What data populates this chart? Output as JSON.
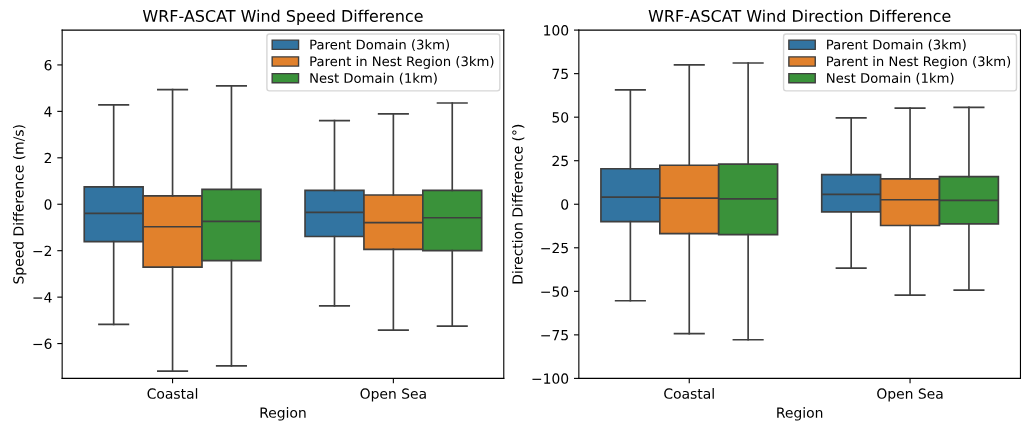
{
  "chart_data": [
    {
      "type": "box",
      "title": "WRF-ASCAT Wind Speed Difference",
      "xlabel": "Region",
      "ylabel": "Speed Difference (m/s)",
      "categories": [
        "Coastal",
        "Open Sea"
      ],
      "ylim": [
        -7.5,
        7.5
      ],
      "yticks": [
        {
          "value": -6,
          "label": "−6"
        },
        {
          "value": -4,
          "label": "−4"
        },
        {
          "value": -2,
          "label": "−2"
        },
        0,
        2,
        4,
        6
      ],
      "legend": "top right",
      "grid": false,
      "series": [
        {
          "name": "Parent Domain (3km)",
          "color": "#3274a1",
          "boxes": [
            {
              "low": -5.17,
              "q1": -1.61,
              "median": -0.39,
              "q3": 0.75,
              "high": 4.28
            },
            {
              "low": -4.38,
              "q1": -1.39,
              "median": -0.35,
              "q3": 0.6,
              "high": 3.6
            }
          ]
        },
        {
          "name": "Parent in Nest Region (3km)",
          "color": "#e1812c",
          "boxes": [
            {
              "low": -7.19,
              "q1": -2.71,
              "median": -0.97,
              "q3": 0.36,
              "high": 4.94
            },
            {
              "low": -5.42,
              "q1": -1.94,
              "median": -0.79,
              "q3": 0.4,
              "high": 3.89
            }
          ]
        },
        {
          "name": "Nest Domain (1km)",
          "color": "#3a923a",
          "boxes": [
            {
              "low": -6.96,
              "q1": -2.43,
              "median": -0.74,
              "q3": 0.64,
              "high": 5.1
            },
            {
              "low": -5.25,
              "q1": -2.0,
              "median": -0.58,
              "q3": 0.6,
              "high": 4.36
            }
          ]
        }
      ]
    },
    {
      "type": "box",
      "title": "WRF-ASCAT Wind Direction Difference",
      "xlabel": "Region",
      "ylabel": "Direction Difference (°)",
      "categories": [
        "Coastal",
        "Open Sea"
      ],
      "ylim": [
        -100,
        100
      ],
      "yticks": [
        {
          "value": -100,
          "label": "−100"
        },
        {
          "value": -75,
          "label": "−75"
        },
        {
          "value": -50,
          "label": "−50"
        },
        {
          "value": -25,
          "label": "−25"
        },
        0,
        25,
        50,
        75,
        100
      ],
      "legend": "top right",
      "grid": false,
      "series": [
        {
          "name": "Parent Domain (3km)",
          "color": "#3274a1",
          "boxes": [
            {
              "low": -55.4,
              "q1": -10,
              "median": 4.1,
              "q3": 20.4,
              "high": 65.7
            },
            {
              "low": -36.7,
              "q1": -4.4,
              "median": 5.7,
              "q3": 17,
              "high": 49.6
            }
          ]
        },
        {
          "name": "Parent in Nest Region (3km)",
          "color": "#e1812c",
          "boxes": [
            {
              "low": -74.3,
              "q1": -16.9,
              "median": 3.5,
              "q3": 22.4,
              "high": 80
            },
            {
              "low": -52.2,
              "q1": -12.2,
              "median": 2.6,
              "q3": 14.6,
              "high": 55.2
            }
          ]
        },
        {
          "name": "Nest Domain (1km)",
          "color": "#3a923a",
          "boxes": [
            {
              "low": -77.8,
              "q1": -17.4,
              "median": 3.1,
              "q3": 23,
              "high": 81.1
            },
            {
              "low": -49.3,
              "q1": -11.3,
              "median": 2.2,
              "q3": 15.9,
              "high": 55.6
            }
          ]
        }
      ]
    }
  ]
}
